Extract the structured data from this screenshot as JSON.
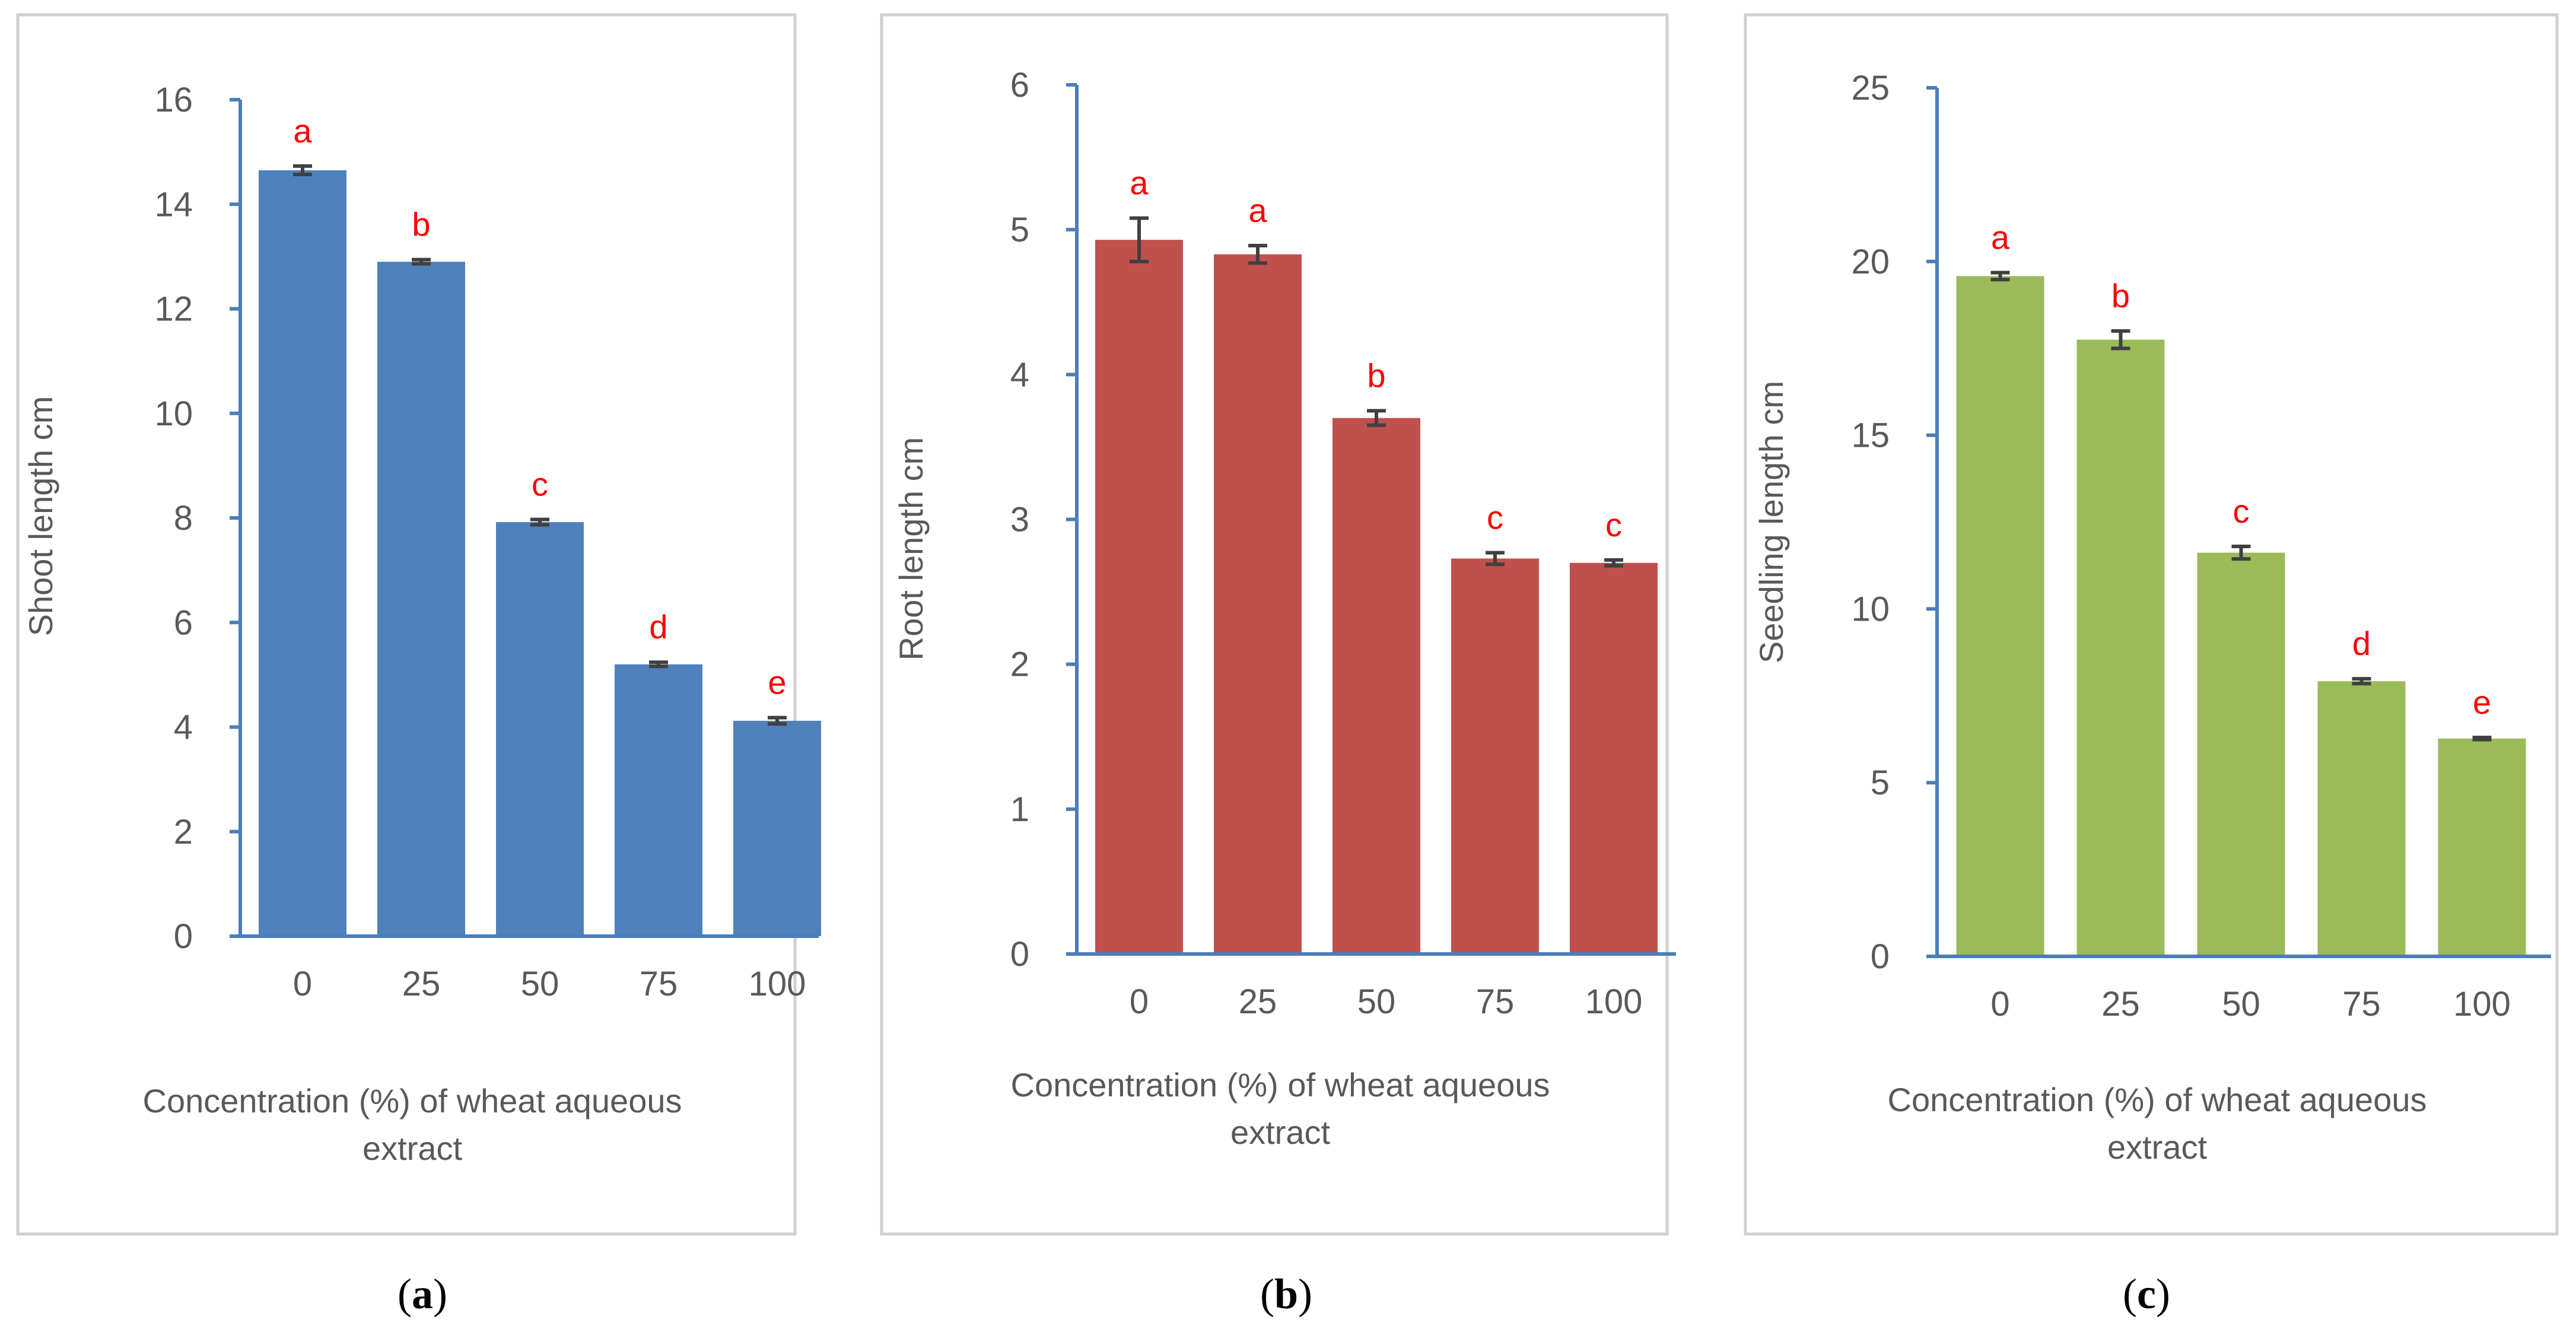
{
  "figure": {
    "panel_captions": [
      {
        "open": "(",
        "letter": "a",
        "close": ")"
      },
      {
        "open": "(",
        "letter": "b",
        "close": ")"
      },
      {
        "open": "(",
        "letter": "c",
        "close": ")"
      }
    ]
  },
  "chart_data": [
    {
      "type": "bar",
      "panel": "a",
      "categories": [
        "0",
        "25",
        "50",
        "75",
        "100"
      ],
      "values": [
        14.65,
        12.9,
        7.92,
        5.2,
        4.12
      ],
      "errors": [
        0.08,
        0.04,
        0.05,
        0.04,
        0.06
      ],
      "significance_letters": [
        "a",
        "b",
        "c",
        "d",
        "e"
      ],
      "title": "",
      "xlabel_lines": [
        "Concentration (%) of wheat aqueous",
        "extract"
      ],
      "ylabel": "Shoot length cm",
      "ylim": [
        0,
        16
      ],
      "yticks": [
        0,
        2,
        4,
        6,
        8,
        10,
        12,
        14,
        16
      ],
      "color": "#4f81bd"
    },
    {
      "type": "bar",
      "panel": "b",
      "categories": [
        "0",
        "25",
        "50",
        "75",
        "100"
      ],
      "values": [
        4.93,
        4.83,
        3.7,
        2.73,
        2.7
      ],
      "errors": [
        0.15,
        0.06,
        0.05,
        0.04,
        0.02
      ],
      "significance_letters": [
        "a",
        "a",
        "b",
        "c",
        "c"
      ],
      "title": "",
      "xlabel_lines": [
        "Concentration (%) of wheat aqueous",
        "extract"
      ],
      "ylabel": "Root length cm",
      "ylim": [
        0,
        6
      ],
      "yticks": [
        0,
        1,
        2,
        3,
        4,
        5,
        6
      ],
      "color": "#c0504d"
    },
    {
      "type": "bar",
      "panel": "c",
      "categories": [
        "0",
        "25",
        "50",
        "75",
        "100"
      ],
      "values": [
        19.58,
        17.75,
        11.62,
        7.92,
        6.27
      ],
      "errors": [
        0.1,
        0.25,
        0.18,
        0.07,
        0.03
      ],
      "significance_letters": [
        "a",
        "b",
        "c",
        "d",
        "e"
      ],
      "title": "",
      "xlabel_lines": [
        "Concentration (%) of wheat aqueous",
        "extract"
      ],
      "ylabel": "Seedling length cm",
      "ylim": [
        0,
        25
      ],
      "yticks": [
        0,
        5,
        10,
        15,
        20,
        25
      ],
      "color": "#9bbb59"
    }
  ]
}
